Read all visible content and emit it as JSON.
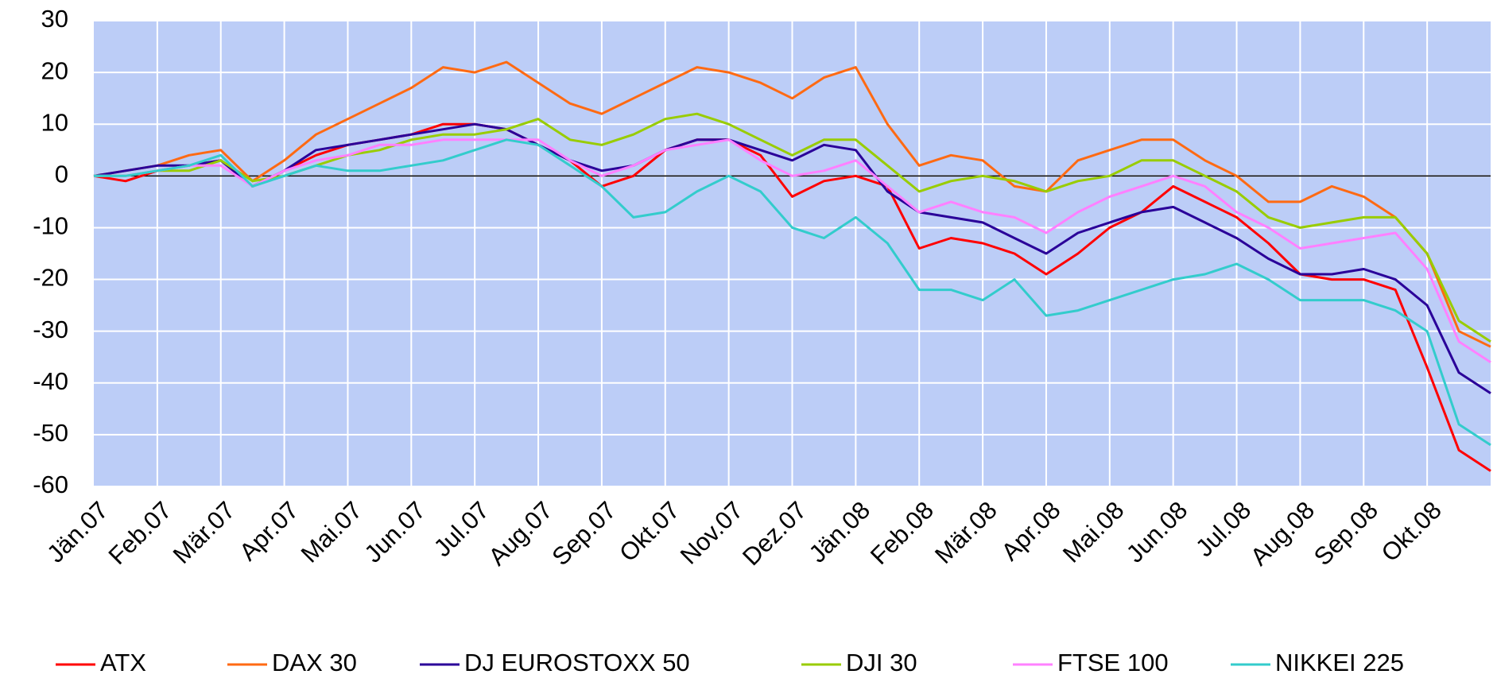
{
  "chart_data": {
    "type": "line",
    "categories": [
      "Jän.07",
      null,
      "Feb.07",
      null,
      "Mär.07",
      null,
      "Apr.07",
      null,
      "Mai.07",
      null,
      "Jun.07",
      null,
      "Jul.07",
      null,
      "Aug.07",
      null,
      "Sep.07",
      null,
      "Okt.07",
      null,
      "Nov.07",
      null,
      "Dez.07",
      null,
      "Jän.08",
      null,
      "Feb.08",
      null,
      "Mär.08",
      null,
      "Apr.08",
      null,
      "Mai.08",
      null,
      "Jun.08",
      null,
      "Jul.08",
      null,
      "Aug.08",
      null,
      "Sep.08",
      null,
      "Okt.08",
      null,
      null
    ],
    "series": [
      {
        "name": "ATX",
        "color": "#ff0000",
        "values": [
          0,
          -1,
          1,
          2,
          3,
          -2,
          1,
          4,
          6,
          7,
          8,
          10,
          10,
          9,
          6,
          3,
          -2,
          0,
          5,
          7,
          7,
          4,
          -4,
          -1,
          0,
          -2,
          -14,
          -12,
          -13,
          -15,
          -19,
          -15,
          -10,
          -7,
          -2,
          -5,
          -8,
          -13,
          -19,
          -20,
          -20,
          -22,
          -37,
          -53,
          -57
        ]
      },
      {
        "name": "DAX 30",
        "color": "#ff6a13",
        "values": [
          0,
          1,
          2,
          4,
          5,
          -1,
          3,
          8,
          11,
          14,
          17,
          21,
          20,
          22,
          18,
          14,
          12,
          15,
          18,
          21,
          20,
          18,
          15,
          19,
          21,
          10,
          2,
          4,
          3,
          -2,
          -3,
          3,
          5,
          7,
          7,
          3,
          0,
          -5,
          -5,
          -2,
          -4,
          -8,
          -15,
          -30,
          -33
        ]
      },
      {
        "name": "DJ EUROSTOXX 50",
        "color": "#2a0099",
        "values": [
          0,
          1,
          2,
          2,
          3,
          -2,
          1,
          5,
          6,
          7,
          8,
          9,
          10,
          9,
          6,
          3,
          1,
          2,
          5,
          7,
          7,
          5,
          3,
          6,
          5,
          -3,
          -7,
          -8,
          -9,
          -12,
          -15,
          -11,
          -9,
          -7,
          -6,
          -9,
          -12,
          -16,
          -19,
          -19,
          -18,
          -20,
          -25,
          -38,
          -42
        ]
      },
      {
        "name": "DJI 30",
        "color": "#99cc00",
        "values": [
          0,
          0,
          1,
          1,
          3,
          -1,
          0,
          2,
          4,
          5,
          7,
          8,
          8,
          9,
          11,
          7,
          6,
          8,
          11,
          12,
          10,
          7,
          4,
          7,
          7,
          2,
          -3,
          -1,
          0,
          -1,
          -3,
          -1,
          0,
          3,
          3,
          0,
          -3,
          -8,
          -10,
          -9,
          -8,
          -8,
          -15,
          -28,
          -32
        ]
      },
      {
        "name": "FTSE 100",
        "color": "#ff80ff",
        "values": [
          0,
          0,
          1,
          2,
          2,
          -2,
          1,
          3,
          4,
          6,
          6,
          7,
          7,
          7,
          7,
          3,
          0,
          2,
          5,
          6,
          7,
          3,
          0,
          1,
          3,
          -2,
          -7,
          -5,
          -7,
          -8,
          -11,
          -7,
          -4,
          -2,
          0,
          -2,
          -7,
          -10,
          -14,
          -13,
          -12,
          -11,
          -18,
          -32,
          -36
        ]
      },
      {
        "name": "NIKKEI 225",
        "color": "#33cccc",
        "values": [
          0,
          0,
          1,
          2,
          4,
          -2,
          0,
          2,
          1,
          1,
          2,
          3,
          5,
          7,
          6,
          2,
          -2,
          -8,
          -7,
          -3,
          0,
          -3,
          -10,
          -12,
          -8,
          -13,
          -22,
          -22,
          -24,
          -20,
          -27,
          -26,
          -24,
          -22,
          -20,
          -19,
          -17,
          -20,
          -24,
          -24,
          -24,
          -26,
          -30,
          -48,
          -52
        ]
      }
    ],
    "ylim": [
      -60,
      30
    ],
    "yticks": [
      -60,
      -50,
      -40,
      -30,
      -20,
      -10,
      0,
      10,
      20,
      30
    ],
    "grid": true,
    "legend": "bottom",
    "plot_background": "#bccdf7"
  }
}
